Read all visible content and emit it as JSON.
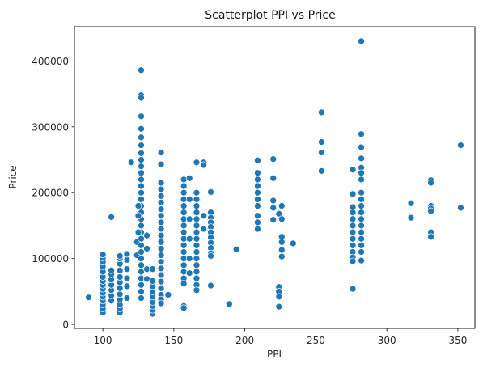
{
  "chart_data": {
    "type": "scatter",
    "title": "Scatterplot PPI vs Price",
    "xlabel": "PPI",
    "ylabel": "Price",
    "xlim": [
      80,
      362
    ],
    "ylim": [
      -6000,
      452000
    ],
    "xticks": [
      100,
      150,
      200,
      250,
      300,
      350
    ],
    "yticks": [
      0,
      100000,
      200000,
      300000,
      400000
    ],
    "grid": false,
    "point_color": "#1f77b4",
    "series": [
      {
        "points": [
          [
            90,
            41000
          ],
          [
            100,
            18000
          ],
          [
            100,
            24000
          ],
          [
            100,
            30000
          ],
          [
            100,
            36000
          ],
          [
            100,
            42000
          ],
          [
            100,
            48000
          ],
          [
            100,
            54000
          ],
          [
            100,
            60000
          ],
          [
            100,
            66000
          ],
          [
            100,
            72000
          ],
          [
            100,
            80000
          ],
          [
            100,
            88000
          ],
          [
            100,
            95000
          ],
          [
            100,
            101000
          ],
          [
            100,
            106000
          ],
          [
            106,
            163000
          ],
          [
            106,
            36000
          ],
          [
            106,
            44000
          ],
          [
            106,
            52000
          ],
          [
            106,
            60000
          ],
          [
            106,
            68000
          ],
          [
            106,
            76000
          ],
          [
            106,
            82000
          ],
          [
            112,
            18000
          ],
          [
            112,
            24000
          ],
          [
            112,
            30000
          ],
          [
            112,
            38000
          ],
          [
            112,
            46000
          ],
          [
            112,
            55000
          ],
          [
            112,
            64000
          ],
          [
            112,
            72000
          ],
          [
            112,
            82000
          ],
          [
            112,
            92000
          ],
          [
            112,
            100000
          ],
          [
            112,
            104000
          ],
          [
            117,
            40000
          ],
          [
            117,
            58000
          ],
          [
            117,
            70000
          ],
          [
            117,
            84000
          ],
          [
            117,
            98000
          ],
          [
            117,
            107000
          ],
          [
            120,
            246000
          ],
          [
            124,
            105000
          ],
          [
            124,
            125000
          ],
          [
            127,
            386000
          ],
          [
            127,
            348000
          ],
          [
            127,
            344000
          ],
          [
            127,
            316000
          ],
          [
            127,
            297000
          ],
          [
            127,
            284000
          ],
          [
            127,
            272000
          ],
          [
            127,
            260000
          ],
          [
            127,
            250000
          ],
          [
            127,
            240000
          ],
          [
            127,
            230000
          ],
          [
            127,
            220000
          ],
          [
            127,
            210000
          ],
          [
            127,
            200000
          ],
          [
            127,
            190000
          ],
          [
            127,
            180000
          ],
          [
            127,
            170000
          ],
          [
            127,
            160000
          ],
          [
            127,
            150000
          ],
          [
            127,
            140000
          ],
          [
            127,
            130000
          ],
          [
            127,
            120000
          ],
          [
            127,
            110000
          ],
          [
            127,
            100000
          ],
          [
            127,
            90000
          ],
          [
            127,
            80000
          ],
          [
            127,
            70000
          ],
          [
            127,
            60000
          ],
          [
            127,
            50000
          ],
          [
            127,
            40000
          ],
          [
            125,
            140000
          ],
          [
            125,
            165000
          ],
          [
            125,
            180000
          ],
          [
            131,
            135000
          ],
          [
            131,
            115000
          ],
          [
            131,
            84000
          ],
          [
            131,
            69000
          ],
          [
            135,
            16000
          ],
          [
            135,
            22000
          ],
          [
            135,
            28000
          ],
          [
            135,
            34000
          ],
          [
            135,
            42000
          ],
          [
            135,
            50000
          ],
          [
            135,
            58000
          ],
          [
            135,
            66000
          ],
          [
            135,
            84000
          ],
          [
            141,
            261000
          ],
          [
            141,
            243000
          ],
          [
            141,
            215000
          ],
          [
            141,
            205000
          ],
          [
            141,
            195000
          ],
          [
            141,
            185000
          ],
          [
            141,
            175000
          ],
          [
            141,
            165000
          ],
          [
            141,
            155000
          ],
          [
            141,
            145000
          ],
          [
            141,
            135000
          ],
          [
            141,
            125000
          ],
          [
            141,
            115000
          ],
          [
            141,
            105000
          ],
          [
            141,
            95000
          ],
          [
            141,
            85000
          ],
          [
            141,
            75000
          ],
          [
            141,
            65000
          ],
          [
            141,
            55000
          ],
          [
            141,
            45000
          ],
          [
            141,
            38000
          ],
          [
            141,
            32000
          ],
          [
            146,
            45000
          ],
          [
            157,
            220000
          ],
          [
            157,
            210000
          ],
          [
            157,
            200000
          ],
          [
            157,
            190000
          ],
          [
            157,
            180000
          ],
          [
            157,
            170000
          ],
          [
            157,
            160000
          ],
          [
            157,
            150000
          ],
          [
            157,
            140000
          ],
          [
            157,
            130000
          ],
          [
            157,
            120000
          ],
          [
            157,
            110000
          ],
          [
            157,
            100000
          ],
          [
            157,
            90000
          ],
          [
            157,
            80000
          ],
          [
            157,
            70000
          ],
          [
            157,
            62000
          ],
          [
            157,
            28000
          ],
          [
            157,
            25000
          ],
          [
            161,
            222000
          ],
          [
            161,
            190000
          ],
          [
            161,
            160000
          ],
          [
            161,
            130000
          ],
          [
            161,
            100000
          ],
          [
            161,
            78000
          ],
          [
            166,
            246000
          ],
          [
            166,
            200000
          ],
          [
            166,
            190000
          ],
          [
            166,
            180000
          ],
          [
            166,
            170000
          ],
          [
            166,
            160000
          ],
          [
            166,
            150000
          ],
          [
            166,
            140000
          ],
          [
            166,
            130000
          ],
          [
            166,
            120000
          ],
          [
            166,
            110000
          ],
          [
            166,
            100000
          ],
          [
            166,
            90000
          ],
          [
            166,
            80000
          ],
          [
            166,
            70000
          ],
          [
            166,
            60000
          ],
          [
            166,
            52000
          ],
          [
            171,
            246000
          ],
          [
            171,
            242000
          ],
          [
            171,
            165000
          ],
          [
            171,
            145000
          ],
          [
            176,
            201000
          ],
          [
            176,
            170000
          ],
          [
            176,
            162000
          ],
          [
            176,
            155000
          ],
          [
            176,
            148000
          ],
          [
            176,
            140000
          ],
          [
            176,
            132000
          ],
          [
            176,
            124000
          ],
          [
            176,
            116000
          ],
          [
            176,
            108000
          ],
          [
            176,
            104000
          ],
          [
            176,
            59000
          ],
          [
            189,
            31000
          ],
          [
            194,
            114000
          ],
          [
            209,
            249000
          ],
          [
            209,
            230000
          ],
          [
            209,
            220000
          ],
          [
            209,
            210000
          ],
          [
            209,
            200000
          ],
          [
            209,
            190000
          ],
          [
            209,
            180000
          ],
          [
            209,
            165000
          ],
          [
            209,
            155000
          ],
          [
            209,
            145000
          ],
          [
            220,
            251000
          ],
          [
            220,
            222000
          ],
          [
            220,
            188000
          ],
          [
            220,
            177000
          ],
          [
            220,
            159000
          ],
          [
            224,
            57000
          ],
          [
            224,
            50000
          ],
          [
            224,
            42000
          ],
          [
            224,
            27000
          ],
          [
            224,
            168000
          ],
          [
            226,
            180000
          ],
          [
            226,
            160000
          ],
          [
            226,
            133000
          ],
          [
            226,
            125000
          ],
          [
            226,
            113000
          ],
          [
            226,
            103000
          ],
          [
            234,
            123000
          ],
          [
            254,
            322000
          ],
          [
            254,
            277000
          ],
          [
            254,
            261000
          ],
          [
            254,
            233000
          ],
          [
            276,
            235000
          ],
          [
            276,
            198000
          ],
          [
            276,
            178000
          ],
          [
            276,
            170000
          ],
          [
            276,
            160000
          ],
          [
            276,
            150000
          ],
          [
            276,
            140000
          ],
          [
            276,
            130000
          ],
          [
            276,
            120000
          ],
          [
            276,
            110000
          ],
          [
            276,
            102000
          ],
          [
            276,
            96000
          ],
          [
            276,
            54000
          ],
          [
            282,
            430000
          ],
          [
            282,
            289000
          ],
          [
            282,
            269000
          ],
          [
            282,
            252000
          ],
          [
            282,
            238000
          ],
          [
            282,
            230000
          ],
          [
            282,
            220000
          ],
          [
            282,
            200000
          ],
          [
            282,
            190000
          ],
          [
            282,
            180000
          ],
          [
            282,
            170000
          ],
          [
            282,
            160000
          ],
          [
            282,
            150000
          ],
          [
            282,
            140000
          ],
          [
            282,
            130000
          ],
          [
            282,
            120000
          ],
          [
            282,
            110000
          ],
          [
            282,
            97000
          ],
          [
            317,
            184000
          ],
          [
            317,
            162000
          ],
          [
            331,
            219000
          ],
          [
            331,
            215000
          ],
          [
            331,
            180000
          ],
          [
            331,
            176000
          ],
          [
            331,
            172000
          ],
          [
            331,
            140000
          ],
          [
            331,
            133000
          ],
          [
            352,
            272000
          ],
          [
            352,
            177000
          ]
        ]
      }
    ]
  }
}
